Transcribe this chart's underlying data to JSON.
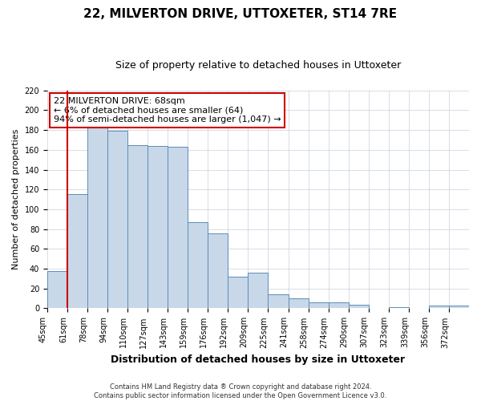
{
  "title": "22, MILVERTON DRIVE, UTTOXETER, ST14 7RE",
  "subtitle": "Size of property relative to detached houses in Uttoxeter",
  "xlabel": "Distribution of detached houses by size in Uttoxeter",
  "ylabel": "Number of detached properties",
  "bar_labels": [
    "45sqm",
    "61sqm",
    "78sqm",
    "94sqm",
    "110sqm",
    "127sqm",
    "143sqm",
    "159sqm",
    "176sqm",
    "192sqm",
    "209sqm",
    "225sqm",
    "241sqm",
    "258sqm",
    "274sqm",
    "290sqm",
    "307sqm",
    "323sqm",
    "339sqm",
    "356sqm",
    "372sqm"
  ],
  "bar_values": [
    38,
    115,
    183,
    179,
    165,
    164,
    163,
    87,
    76,
    32,
    36,
    14,
    10,
    6,
    6,
    4,
    0,
    1,
    0,
    3,
    3
  ],
  "bar_color": "#c8d8e8",
  "bar_edge_color": "#5b8db8",
  "vline_x": 1.0,
  "vline_color": "#cc0000",
  "ylim": [
    0,
    220
  ],
  "yticks": [
    0,
    20,
    40,
    60,
    80,
    100,
    120,
    140,
    160,
    180,
    200,
    220
  ],
  "annotation_title": "22 MILVERTON DRIVE: 68sqm",
  "annotation_line1": "← 6% of detached houses are smaller (64)",
  "annotation_line2": "94% of semi-detached houses are larger (1,047) →",
  "annotation_box_color": "#cc0000",
  "footer_line1": "Contains HM Land Registry data ® Crown copyright and database right 2024.",
  "footer_line2": "Contains public sector information licensed under the Open Government Licence v3.0.",
  "bg_color": "#ffffff",
  "grid_color": "#c8d0dc",
  "title_fontsize": 11,
  "subtitle_fontsize": 9,
  "annotation_fontsize": 8,
  "axis_label_fontsize": 8,
  "xlabel_fontsize": 9,
  "tick_fontsize": 7
}
